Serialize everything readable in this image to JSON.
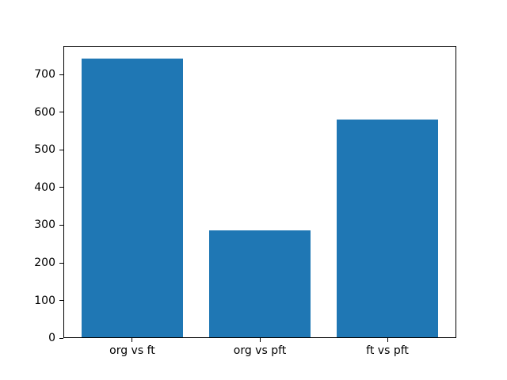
{
  "chart_data": {
    "type": "bar",
    "title": "",
    "xlabel": "",
    "ylabel": "",
    "categories": [
      "org vs ft",
      "org vs pft",
      "ft vs pft"
    ],
    "values": [
      740,
      284,
      578
    ],
    "bar_color": "#1f77b4",
    "bar_width": 0.8,
    "yticks": [
      0,
      100,
      200,
      300,
      400,
      500,
      600,
      700
    ],
    "ylim": [
      0,
      777
    ],
    "xlim": [
      -0.54,
      2.54
    ],
    "grid": false,
    "legend": false,
    "background_color": "#ffffff",
    "spine_color": "#000000",
    "tick_label_color": "#000000"
  }
}
